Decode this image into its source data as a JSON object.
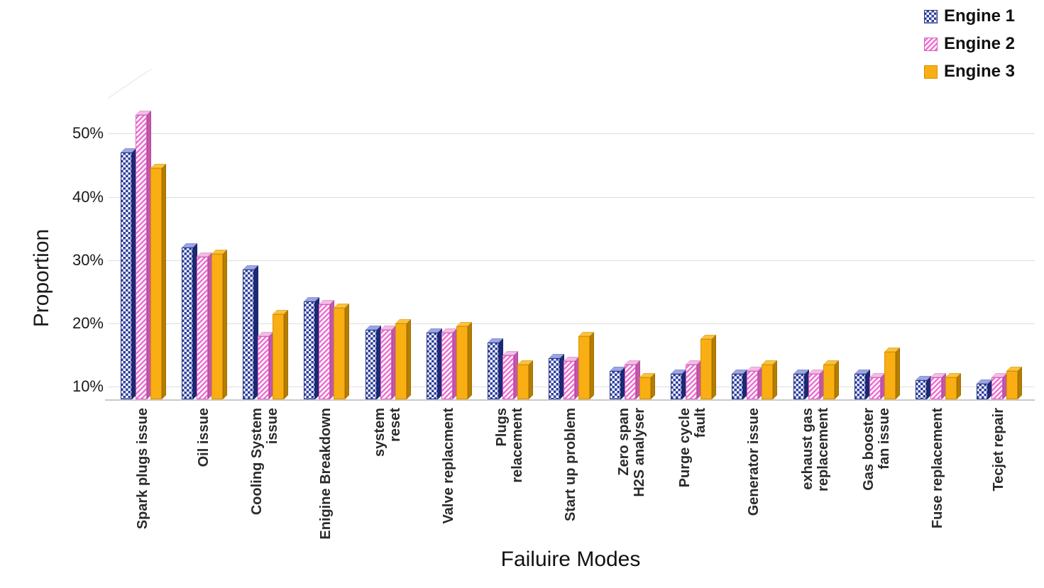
{
  "chart_data": {
    "type": "bar",
    "title": "",
    "xlabel": "Failuire Modes",
    "ylabel": "Proportion",
    "categories": [
      "Spark plugs issue",
      "Oil issue",
      "Cooling System\nissue",
      "Enigine Breakdown",
      "system\nreset",
      "Valve replacment",
      "Plugs\nrelacement",
      "Start up problem",
      "Zero span\nH2S analyser",
      "Purge cycle\nfault",
      "Generator  issue",
      "exhaust gas\nreplacement",
      "Gas booster\nfan issue",
      "Fuse replacement",
      "Tecjet repair"
    ],
    "series": [
      {
        "name": "Engine 1",
        "values": [
          47,
          32,
          28.5,
          23.5,
          19,
          18.5,
          17,
          14.5,
          12.5,
          12,
          12,
          12,
          12,
          11,
          10.5
        ]
      },
      {
        "name": "Engine 2",
        "values": [
          53,
          30.5,
          18,
          23,
          19,
          18.5,
          15,
          14,
          13.5,
          13.5,
          12.5,
          12,
          11.5,
          11.5,
          11.5
        ]
      },
      {
        "name": "Engine 3",
        "values": [
          44.5,
          31,
          21.5,
          22.5,
          20,
          19.5,
          13.5,
          18,
          11.5,
          17.5,
          13.5,
          13.5,
          15.5,
          11.5,
          12.5
        ]
      }
    ],
    "yticks": [
      "10%",
      "20%",
      "30%",
      "40%",
      "50%"
    ],
    "ytick_values": [
      10,
      20,
      30,
      40,
      50
    ],
    "ylim": [
      8,
      57
    ],
    "grid": true,
    "legend_position": "top-right",
    "colors": {
      "engine1": "#2e3f9e",
      "engine2": "#ee6fd2",
      "engine3": "#f9ae13"
    }
  },
  "legend": {
    "items": [
      {
        "label": "Engine 1"
      },
      {
        "label": "Engine 2"
      },
      {
        "label": "Engine 3"
      }
    ]
  }
}
